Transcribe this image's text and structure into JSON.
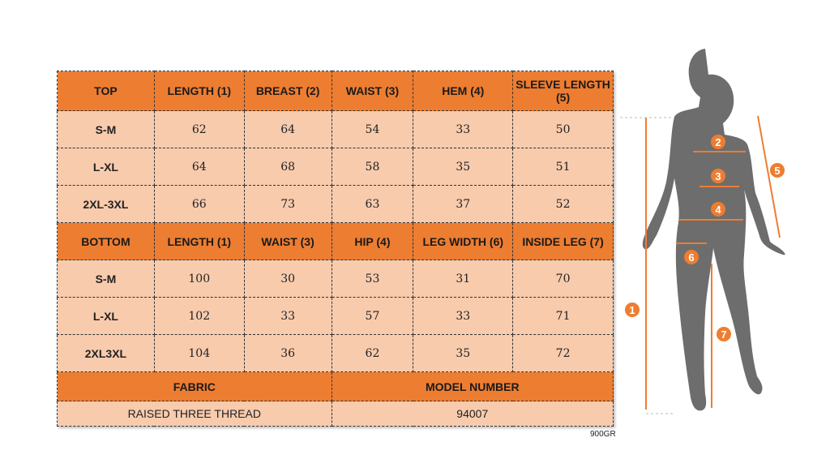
{
  "top": {
    "headers": [
      "TOP",
      "LENGTH (1)",
      "BREAST (2)",
      "WAIST (3)",
      "HEM (4)",
      "SLEEVE LENGTH (5)"
    ],
    "rows": [
      [
        "S-M",
        "62",
        "64",
        "54",
        "33",
        "50"
      ],
      [
        "L-XL",
        "64",
        "68",
        "58",
        "35",
        "51"
      ],
      [
        "2XL-3XL",
        "66",
        "73",
        "63",
        "37",
        "52"
      ]
    ]
  },
  "bottom": {
    "headers": [
      "BOTTOM",
      "LENGTH (1)",
      "WAIST (3)",
      "HIP (4)",
      "LEG WIDTH (6)",
      "INSIDE LEG (7)"
    ],
    "rows": [
      [
        "S-M",
        "100",
        "30",
        "53",
        "31",
        "70"
      ],
      [
        "L-XL",
        "102",
        "33",
        "57",
        "33",
        "71"
      ],
      [
        "2XL3XL",
        "104",
        "36",
        "62",
        "35",
        "72"
      ]
    ]
  },
  "fabric": {
    "label": "FABRIC",
    "value": "RAISED THREE THREAD"
  },
  "model": {
    "label": "MODEL NUMBER",
    "value": "94007"
  },
  "note": "900GR",
  "figure": {
    "markers": [
      "1",
      "2",
      "3",
      "4",
      "5",
      "6",
      "7"
    ]
  },
  "colors": {
    "header": "#ED7D31",
    "cell": "#F8CBAD",
    "silhouette": "#6d6d6d"
  }
}
